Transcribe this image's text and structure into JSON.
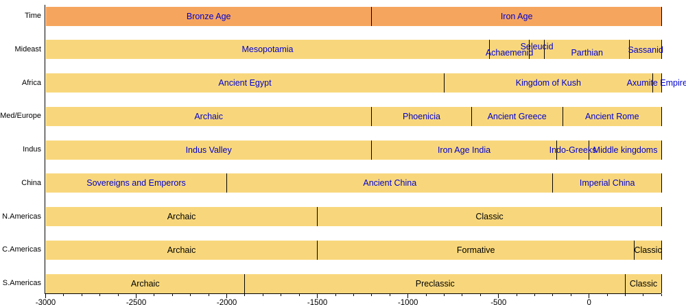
{
  "chart_data": {
    "type": "bar",
    "subtype": "timeline-gantt",
    "title": "",
    "xlabel": "",
    "ylabel": "",
    "xlim": [
      -3000,
      400
    ],
    "grid": false,
    "legend": "none",
    "colors": {
      "time_bar": "#F6A55F",
      "region_bar": "#F8D77C",
      "old_world_text": "#0000CD",
      "americas_text": "#000000",
      "axis": "#000000"
    },
    "x_axis": {
      "major_tick_years": [
        -3000,
        -2500,
        -2000,
        -1500,
        -1000,
        -500,
        0
      ],
      "major_tick_labels": [
        "-3000",
        "-2500",
        "-2000",
        "-1500",
        "-1000",
        "-500",
        "0"
      ],
      "minor_tick_step": 100,
      "minor_tick_range": [
        -3000,
        400
      ]
    },
    "rows": [
      {
        "label": "Time",
        "bar_color": "#F6A55F",
        "label_color": "#0000CD",
        "segments": [
          {
            "name": "Bronze Age",
            "start": -3000,
            "end": -1200,
            "dy": 0
          },
          {
            "name": "Iron Age",
            "start": -1200,
            "end": 400,
            "dy": 0
          }
        ]
      },
      {
        "label": "Mideast",
        "bar_color": "#F8D77C",
        "label_color": "#0000CD",
        "segments": [
          {
            "name": "Mesopotamia",
            "start": -3000,
            "end": -550,
            "dy": 0
          },
          {
            "name": "Achaemenid",
            "start": -550,
            "end": -330,
            "dy": 5
          },
          {
            "name": "Seleucid",
            "start": -330,
            "end": -247,
            "dy": -4
          },
          {
            "name": "Parthian",
            "start": -247,
            "end": 224,
            "dy": 5
          },
          {
            "name": "Sassanid",
            "start": 224,
            "end": 400,
            "dy": 1
          }
        ]
      },
      {
        "label": "Africa",
        "bar_color": "#F8D77C",
        "label_color": "#0000CD",
        "segments": [
          {
            "name": "Ancient Egypt",
            "start": -3000,
            "end": -800,
            "dy": 0
          },
          {
            "name": "Kingdom of Kush",
            "start": -800,
            "end": 350,
            "dy": 0
          },
          {
            "name": "Axumite Empire",
            "start": 350,
            "end": 400,
            "dy": 0
          }
        ]
      },
      {
        "label": "Med/Europe",
        "bar_color": "#F8D77C",
        "label_color": "#0000CD",
        "segments": [
          {
            "name": "Archaic",
            "start": -3000,
            "end": -1200,
            "dy": 0
          },
          {
            "name": "Phoenicia",
            "start": -1200,
            "end": -650,
            "dy": 0
          },
          {
            "name": "Ancient Greece",
            "start": -650,
            "end": -146,
            "dy": 0
          },
          {
            "name": "Ancient Rome",
            "start": -146,
            "end": 400,
            "dy": 0
          }
        ]
      },
      {
        "label": "Indus",
        "bar_color": "#F8D77C",
        "label_color": "#0000CD",
        "segments": [
          {
            "name": "Indus Valley",
            "start": -3000,
            "end": -1200,
            "dy": 0
          },
          {
            "name": "Iron Age India",
            "start": -1200,
            "end": -180,
            "dy": 0
          },
          {
            "name": "Indo-Greeks",
            "start": -180,
            "end": 0,
            "dy": 0
          },
          {
            "name": "Middle kingdoms",
            "start": 0,
            "end": 400,
            "dy": 0
          }
        ]
      },
      {
        "label": "China",
        "bar_color": "#F8D77C",
        "label_color": "#0000CD",
        "segments": [
          {
            "name": "Sovereigns and Emperors",
            "start": -3000,
            "end": -2000,
            "dy": 0
          },
          {
            "name": "Ancient China",
            "start": -2000,
            "end": -200,
            "dy": 0
          },
          {
            "name": "Imperial China",
            "start": -200,
            "end": 400,
            "dy": 0
          }
        ]
      },
      {
        "label": "N.Americas",
        "bar_color": "#F8D77C",
        "label_color": "#000000",
        "segments": [
          {
            "name": "Archaic",
            "start": -3000,
            "end": -1500,
            "dy": 0
          },
          {
            "name": "Classic",
            "start": -1500,
            "end": 400,
            "dy": 0
          }
        ]
      },
      {
        "label": "C.Americas",
        "bar_color": "#F8D77C",
        "label_color": "#000000",
        "segments": [
          {
            "name": "Archaic",
            "start": -3000,
            "end": -1500,
            "dy": 0
          },
          {
            "name": "Formative",
            "start": -1500,
            "end": 250,
            "dy": 0
          },
          {
            "name": "Classic",
            "start": 250,
            "end": 400,
            "dy": 0
          }
        ]
      },
      {
        "label": "S.Americas",
        "bar_color": "#F8D77C",
        "label_color": "#000000",
        "segments": [
          {
            "name": "Archaic",
            "start": -3000,
            "end": -1900,
            "dy": 0
          },
          {
            "name": "Preclassic",
            "start": -1900,
            "end": 200,
            "dy": 0
          },
          {
            "name": "Classic",
            "start": 200,
            "end": 400,
            "dy": 0
          }
        ]
      }
    ]
  }
}
